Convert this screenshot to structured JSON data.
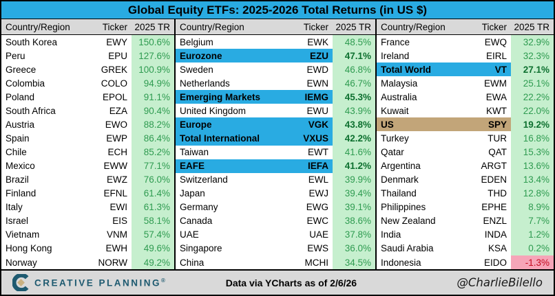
{
  "title": "Global Equity ETFs: 2025-2026 Total Returns (in US $)",
  "chart_data": {
    "type": "table",
    "title": "Global Equity ETFs: 2025-2026 Total Returns (in US $)",
    "columns": {
      "country": "Country/Region",
      "ticker": "Ticker",
      "tr": "2025 TR"
    },
    "highlight_colors": {
      "index_row": "#29ABE2",
      "us_row": "#C2A579",
      "positive_bg": "#C6EFCE",
      "negative_bg": "#F6A5B8"
    },
    "groups": [
      {
        "rows": [
          {
            "country": "South Korea",
            "ticker": "EWY",
            "tr": "150.6%",
            "value": 150.6,
            "highlight": "none",
            "negative": false
          },
          {
            "country": "Peru",
            "ticker": "EPU",
            "tr": "127.6%",
            "value": 127.6,
            "highlight": "none",
            "negative": false
          },
          {
            "country": "Greece",
            "ticker": "GREK",
            "tr": "100.9%",
            "value": 100.9,
            "highlight": "none",
            "negative": false
          },
          {
            "country": "Colombia",
            "ticker": "COLO",
            "tr": "94.9%",
            "value": 94.9,
            "highlight": "none",
            "negative": false
          },
          {
            "country": "Poland",
            "ticker": "EPOL",
            "tr": "91.1%",
            "value": 91.1,
            "highlight": "none",
            "negative": false
          },
          {
            "country": "South Africa",
            "ticker": "EZA",
            "tr": "90.4%",
            "value": 90.4,
            "highlight": "none",
            "negative": false
          },
          {
            "country": "Austria",
            "ticker": "EWO",
            "tr": "88.2%",
            "value": 88.2,
            "highlight": "none",
            "negative": false
          },
          {
            "country": "Spain",
            "ticker": "EWP",
            "tr": "86.4%",
            "value": 86.4,
            "highlight": "none",
            "negative": false
          },
          {
            "country": "Chile",
            "ticker": "ECH",
            "tr": "85.2%",
            "value": 85.2,
            "highlight": "none",
            "negative": false
          },
          {
            "country": "Mexico",
            "ticker": "EWW",
            "tr": "77.1%",
            "value": 77.1,
            "highlight": "none",
            "negative": false
          },
          {
            "country": "Brazil",
            "ticker": "EWZ",
            "tr": "76.0%",
            "value": 76.0,
            "highlight": "none",
            "negative": false
          },
          {
            "country": "Finland",
            "ticker": "EFNL",
            "tr": "61.4%",
            "value": 61.4,
            "highlight": "none",
            "negative": false
          },
          {
            "country": "Italy",
            "ticker": "EWI",
            "tr": "61.3%",
            "value": 61.3,
            "highlight": "none",
            "negative": false
          },
          {
            "country": "Israel",
            "ticker": "EIS",
            "tr": "58.1%",
            "value": 58.1,
            "highlight": "none",
            "negative": false
          },
          {
            "country": "Vietnam",
            "ticker": "VNM",
            "tr": "57.4%",
            "value": 57.4,
            "highlight": "none",
            "negative": false
          },
          {
            "country": "Hong Kong",
            "ticker": "EWH",
            "tr": "49.6%",
            "value": 49.6,
            "highlight": "none",
            "negative": false
          },
          {
            "country": "Norway",
            "ticker": "NORW",
            "tr": "49.2%",
            "value": 49.2,
            "highlight": "none",
            "negative": false
          }
        ]
      },
      {
        "rows": [
          {
            "country": "Belgium",
            "ticker": "EWK",
            "tr": "48.5%",
            "value": 48.5,
            "highlight": "none",
            "negative": false
          },
          {
            "country": "Eurozone",
            "ticker": "EZU",
            "tr": "47.1%",
            "value": 47.1,
            "highlight": "blue",
            "negative": false
          },
          {
            "country": "Sweden",
            "ticker": "EWD",
            "tr": "46.8%",
            "value": 46.8,
            "highlight": "none",
            "negative": false
          },
          {
            "country": "Netherlands",
            "ticker": "EWN",
            "tr": "46.7%",
            "value": 46.7,
            "highlight": "none",
            "negative": false
          },
          {
            "country": "Emerging Markets",
            "ticker": "IEMG",
            "tr": "45.3%",
            "value": 45.3,
            "highlight": "blue",
            "negative": false
          },
          {
            "country": "United Kingdom",
            "ticker": "EWU",
            "tr": "43.9%",
            "value": 43.9,
            "highlight": "none",
            "negative": false
          },
          {
            "country": "Europe",
            "ticker": "VGK",
            "tr": "43.8%",
            "value": 43.8,
            "highlight": "blue",
            "negative": false
          },
          {
            "country": "Total International",
            "ticker": "VXUS",
            "tr": "42.2%",
            "value": 42.2,
            "highlight": "blue",
            "negative": false
          },
          {
            "country": "Taiwan",
            "ticker": "EWT",
            "tr": "41.6%",
            "value": 41.6,
            "highlight": "none",
            "negative": false
          },
          {
            "country": "EAFE",
            "ticker": "IEFA",
            "tr": "41.2%",
            "value": 41.2,
            "highlight": "blue",
            "negative": false
          },
          {
            "country": "Switzerland",
            "ticker": "EWL",
            "tr": "39.9%",
            "value": 39.9,
            "highlight": "none",
            "negative": false
          },
          {
            "country": "Japan",
            "ticker": "EWJ",
            "tr": "39.4%",
            "value": 39.4,
            "highlight": "none",
            "negative": false
          },
          {
            "country": "Germany",
            "ticker": "EWG",
            "tr": "39.1%",
            "value": 39.1,
            "highlight": "none",
            "negative": false
          },
          {
            "country": "Canada",
            "ticker": "EWC",
            "tr": "38.6%",
            "value": 38.6,
            "highlight": "none",
            "negative": false
          },
          {
            "country": "UAE",
            "ticker": "UAE",
            "tr": "37.8%",
            "value": 37.8,
            "highlight": "none",
            "negative": false
          },
          {
            "country": "Singapore",
            "ticker": "EWS",
            "tr": "36.0%",
            "value": 36.0,
            "highlight": "none",
            "negative": false
          },
          {
            "country": "China",
            "ticker": "MCHI",
            "tr": "34.5%",
            "value": 34.5,
            "highlight": "none",
            "negative": false
          }
        ]
      },
      {
        "rows": [
          {
            "country": "France",
            "ticker": "EWQ",
            "tr": "32.9%",
            "value": 32.9,
            "highlight": "none",
            "negative": false
          },
          {
            "country": "Ireland",
            "ticker": "EIRL",
            "tr": "32.3%",
            "value": 32.3,
            "highlight": "none",
            "negative": false
          },
          {
            "country": "Total World",
            "ticker": "VT",
            "tr": "27.1%",
            "value": 27.1,
            "highlight": "blue",
            "negative": false
          },
          {
            "country": "Malaysia",
            "ticker": "EWM",
            "tr": "25.1%",
            "value": 25.1,
            "highlight": "none",
            "negative": false
          },
          {
            "country": "Australia",
            "ticker": "EWA",
            "tr": "22.2%",
            "value": 22.2,
            "highlight": "none",
            "negative": false
          },
          {
            "country": "Kuwait",
            "ticker": "KWT",
            "tr": "22.0%",
            "value": 22.0,
            "highlight": "none",
            "negative": false
          },
          {
            "country": "US",
            "ticker": "SPY",
            "tr": "19.2%",
            "value": 19.2,
            "highlight": "tan",
            "negative": false
          },
          {
            "country": "Turkey",
            "ticker": "TUR",
            "tr": "16.8%",
            "value": 16.8,
            "highlight": "none",
            "negative": false
          },
          {
            "country": "Qatar",
            "ticker": "QAT",
            "tr": "15.3%",
            "value": 15.3,
            "highlight": "none",
            "negative": false
          },
          {
            "country": "Argentina",
            "ticker": "ARGT",
            "tr": "13.6%",
            "value": 13.6,
            "highlight": "none",
            "negative": false
          },
          {
            "country": "Denmark",
            "ticker": "EDEN",
            "tr": "13.4%",
            "value": 13.4,
            "highlight": "none",
            "negative": false
          },
          {
            "country": "Thailand",
            "ticker": "THD",
            "tr": "12.8%",
            "value": 12.8,
            "highlight": "none",
            "negative": false
          },
          {
            "country": "Philippines",
            "ticker": "EPHE",
            "tr": "8.9%",
            "value": 8.9,
            "highlight": "none",
            "negative": false
          },
          {
            "country": "New Zealand",
            "ticker": "ENZL",
            "tr": "7.7%",
            "value": 7.7,
            "highlight": "none",
            "negative": false
          },
          {
            "country": "India",
            "ticker": "INDA",
            "tr": "1.2%",
            "value": 1.2,
            "highlight": "none",
            "negative": false
          },
          {
            "country": "Saudi Arabia",
            "ticker": "KSA",
            "tr": "0.2%",
            "value": 0.2,
            "highlight": "none",
            "negative": false
          },
          {
            "country": "Indonesia",
            "ticker": "EIDO",
            "tr": "-1.3%",
            "value": -1.3,
            "highlight": "none",
            "negative": true
          }
        ]
      }
    ]
  },
  "footer": {
    "logo_text": "CREATIVE PLANNING",
    "logo_mark": "®",
    "data_note": "Data via YCharts as of 2/6/26",
    "handle": "@CharlieBilello"
  },
  "colors": {
    "title_bg": "#29ABE2",
    "header_bg": "#D9D9D9",
    "positive_bg": "#C6EFCE",
    "positive_text": "#2E9B50",
    "negative_bg": "#F6A5B8",
    "negative_text": "#C4081E",
    "index_highlight": "#29ABE2",
    "us_highlight": "#C2A579",
    "logo_teal": "#1E5A70",
    "logo_gold": "#C9B181"
  }
}
